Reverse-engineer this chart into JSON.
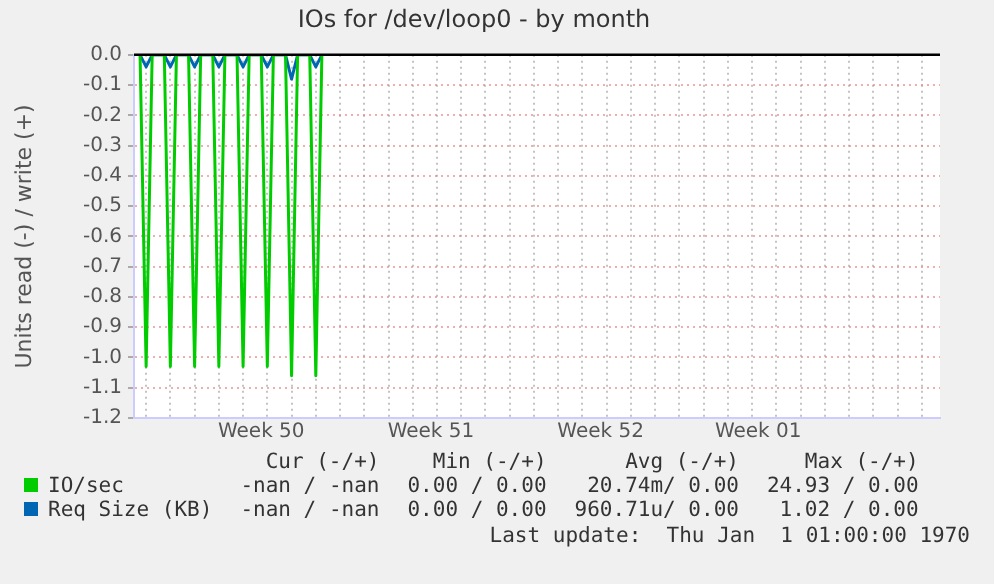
{
  "chart_data": {
    "type": "line",
    "title": "IOs for /dev/loop0 - by month",
    "ylabel": "Units read (-) / write (+)",
    "categories": [
      null,
      null,
      null,
      null,
      null,
      null,
      null,
      null,
      null,
      null,
      null,
      null,
      null,
      null,
      null,
      null,
      null,
      null,
      null,
      null,
      null,
      "Week 50",
      null,
      null,
      null,
      null,
      null,
      null,
      null,
      null,
      null,
      null,
      null,
      null,
      null,
      null,
      null,
      null,
      null,
      null,
      null,
      null,
      null,
      null,
      null,
      null,
      null,
      null,
      null,
      "Week 51",
      null,
      null,
      null,
      null,
      null,
      null,
      null,
      null,
      null,
      null,
      null,
      null,
      null,
      null,
      null,
      null,
      null,
      null,
      null,
      null,
      null,
      null,
      null,
      null,
      null,
      null,
      null,
      "Week 52",
      null,
      null,
      null,
      null,
      null,
      null,
      null,
      null,
      null,
      null,
      null,
      null,
      null,
      null,
      null,
      null,
      null,
      null,
      null,
      null,
      null,
      null,
      null,
      null,
      null,
      "Week 01",
      null,
      null,
      null,
      null,
      null,
      null,
      null,
      null,
      null,
      null,
      null,
      null,
      null,
      null,
      null,
      null,
      null,
      null,
      null,
      null,
      null,
      null,
      null,
      null,
      null,
      null,
      null,
      null,
      null,
      null
    ],
    "ylim": [
      -1.2,
      0
    ],
    "yticks": [
      {
        "value": 0,
        "label": "0.0"
      },
      -0.1,
      -0.2,
      -0.3,
      -0.4,
      -0.5,
      -0.6,
      -0.7,
      -0.8,
      -0.9,
      {
        "value": -1,
        "label": "-1.0"
      },
      -1.1,
      -1.2
    ],
    "grid": true,
    "legend": "bottom",
    "marker": "none",
    "line_style": "solid",
    "ref_lines": [
      {
        "axis": "y",
        "value": 0,
        "color": "#000000"
      }
    ],
    "series": [
      {
        "name": "IO/sec",
        "color": "#00cc00",
        "values": [
          null,
          0,
          -1.03,
          0,
          0,
          0,
          -1.03,
          0,
          0,
          0,
          -1.03,
          0,
          0,
          0,
          -1.03,
          0,
          0,
          0,
          -1.03,
          0,
          0,
          0,
          -1.03,
          0,
          0,
          0,
          -1.06,
          0,
          0,
          0,
          -1.06,
          0,
          null,
          null,
          null,
          null,
          null,
          null,
          null,
          null,
          null,
          null,
          null,
          null,
          null,
          null,
          null,
          null,
          null,
          null,
          null,
          null,
          null,
          null,
          null,
          null,
          null,
          null,
          null,
          null,
          null,
          null,
          null,
          null,
          null,
          null,
          null,
          null,
          null,
          null,
          null,
          null,
          null,
          null,
          null,
          null,
          null,
          null,
          null,
          null,
          null,
          null,
          null,
          null,
          null,
          null,
          null,
          null,
          null,
          null,
          null,
          null,
          null,
          null,
          null,
          null,
          null,
          null,
          null,
          null,
          null,
          null,
          null,
          null,
          null,
          null,
          null,
          null,
          null,
          null,
          null,
          null,
          null,
          null,
          null,
          null,
          null,
          null,
          null,
          null,
          null,
          null,
          null,
          null,
          null,
          null,
          null,
          null,
          null,
          null,
          null,
          null,
          null,
          null
        ]
      },
      {
        "name": "Req Size (KB)",
        "color": "#0066b3",
        "values": [
          null,
          0,
          -0.04,
          0,
          0,
          0,
          -0.04,
          0,
          0,
          0,
          -0.04,
          0,
          0,
          0,
          -0.04,
          0,
          0,
          0,
          -0.04,
          0,
          0,
          0,
          -0.04,
          0,
          0,
          0,
          -0.08,
          0,
          0,
          0,
          -0.04,
          0,
          null,
          null,
          null,
          null,
          null,
          null,
          null,
          null,
          null,
          null,
          null,
          null,
          null,
          null,
          null,
          null,
          null,
          null,
          null,
          null,
          null,
          null,
          null,
          null,
          null,
          null,
          null,
          null,
          null,
          null,
          null,
          null,
          null,
          null,
          null,
          null,
          null,
          null,
          null,
          null,
          null,
          null,
          null,
          null,
          null,
          null,
          null,
          null,
          null,
          null,
          null,
          null,
          null,
          null,
          null,
          null,
          null,
          null,
          null,
          null,
          null,
          null,
          null,
          null,
          null,
          null,
          null,
          null,
          null,
          null,
          null,
          null,
          null,
          null,
          null,
          null,
          null,
          null,
          null,
          null,
          null,
          null,
          null,
          null,
          null,
          null,
          null,
          null,
          null,
          null,
          null,
          null,
          null,
          null,
          null,
          null,
          null,
          null,
          null,
          null,
          null,
          null
        ]
      }
    ],
    "annotations": [
      "Cur (-/+)",
      "Min (-/+)",
      "Avg (-/+)",
      "Max (-/+)",
      "-nan / -nan",
      "0.00 / 0.00",
      "20.74m/ 0.00",
      "24.93 / 0.00",
      "-nan / -nan",
      "0.00 / 0.00",
      "960.71u/ 0.00",
      "1.02 / 0.00",
      "Last update:  Thu Jan  1 01:00:00 1970"
    ]
  }
}
